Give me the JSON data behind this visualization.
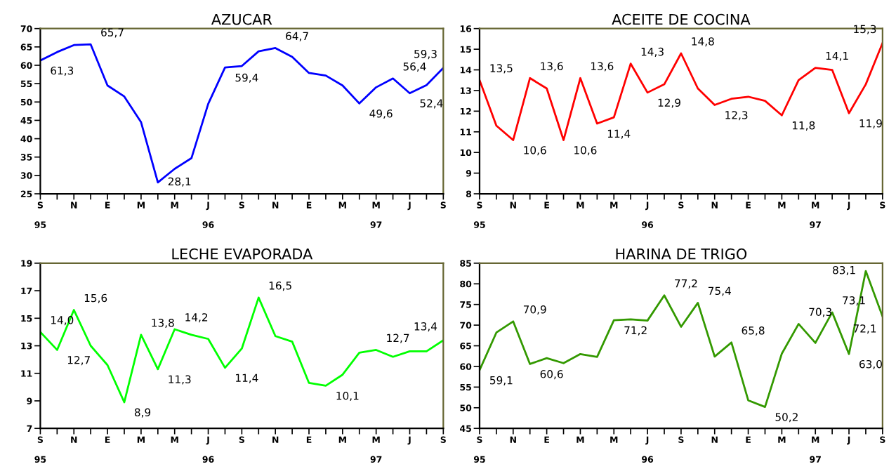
{
  "chart_data": [
    {
      "type": "line",
      "title": "AZUCAR",
      "categories": [
        "S\n\n95",
        null,
        "N",
        null,
        "E",
        null,
        "M",
        null,
        "M",
        null,
        "J\n\n96",
        null,
        "S",
        null,
        "N",
        null,
        "E",
        null,
        "M",
        null,
        "M\n\n97",
        null,
        "J",
        null,
        "S"
      ],
      "series": [
        {
          "color": "#0000ff",
          "values": [
            61.3,
            63.6,
            65.5,
            65.7,
            54.5,
            51.5,
            44.5,
            28.1,
            31.8,
            34.7,
            49.5,
            59.4,
            59.8,
            63.8,
            64.7,
            62.3,
            57.9,
            57.2,
            54.5,
            49.6,
            54.0,
            56.4,
            52.4,
            54.6,
            59.3
          ],
          "value_labels": [
            "61,3",
            null,
            null,
            "65,7",
            null,
            null,
            null,
            "28,1",
            null,
            null,
            null,
            "59,4",
            null,
            null,
            "64,7",
            null,
            null,
            null,
            null,
            "49,6",
            null,
            "56,4",
            "52,4",
            null,
            "59,3"
          ]
        }
      ],
      "ylim": [
        25,
        70
      ],
      "yticks": [
        25,
        30,
        35,
        40,
        45,
        50,
        55,
        60,
        65,
        70
      ],
      "grid": false,
      "legend": false,
      "marker": "none",
      "line_style": "solid"
    },
    {
      "type": "line",
      "title": "ACEITE DE COCINA",
      "categories": [
        "S\n\n95",
        null,
        "N",
        null,
        "E",
        null,
        "M",
        null,
        "M",
        null,
        "J\n\n96",
        null,
        "S",
        null,
        "N",
        null,
        "E",
        null,
        "M",
        null,
        "M\n\n97",
        null,
        "J",
        null,
        "S"
      ],
      "series": [
        {
          "color": "#ff0000",
          "values": [
            13.5,
            11.3,
            10.6,
            13.6,
            13.1,
            10.6,
            13.6,
            11.4,
            11.7,
            14.3,
            12.9,
            13.3,
            14.8,
            13.1,
            12.3,
            12.6,
            12.7,
            12.5,
            11.8,
            13.5,
            14.1,
            14.0,
            11.9,
            13.3,
            15.3
          ],
          "value_labels": [
            "13,5",
            null,
            "10,6",
            "13,6",
            null,
            "10,6",
            "13,6",
            "11,4",
            null,
            "14,3",
            "12,9",
            null,
            "14,8",
            null,
            "12,3",
            null,
            null,
            null,
            "11,8",
            null,
            "14,1",
            null,
            "11,9",
            null,
            "15,3"
          ]
        }
      ],
      "ylim": [
        8,
        16
      ],
      "yticks": [
        8,
        9,
        10,
        11,
        12,
        13,
        14,
        15,
        16
      ],
      "grid": false,
      "legend": false,
      "marker": "none",
      "line_style": "solid"
    },
    {
      "type": "line",
      "title": "LECHE EVAPORADA",
      "categories": [
        "S\n\n95",
        null,
        "N",
        null,
        "E",
        null,
        "M",
        null,
        "M",
        null,
        "J\n\n96",
        null,
        "S",
        null,
        "N",
        null,
        "E",
        null,
        "M",
        null,
        "M\n\n97",
        null,
        "J",
        null,
        "S"
      ],
      "series": [
        {
          "color": "#00ff00",
          "values": [
            14.0,
            12.7,
            15.6,
            13.0,
            11.6,
            8.9,
            13.8,
            11.3,
            14.2,
            13.8,
            13.5,
            11.4,
            12.8,
            16.5,
            13.7,
            13.3,
            10.3,
            10.1,
            10.9,
            12.5,
            12.7,
            12.2,
            12.6,
            12.6,
            13.4
          ],
          "value_labels": [
            "14,0",
            "12,7",
            "15,6",
            null,
            null,
            "8,9",
            "13,8",
            "11,3",
            "14,2",
            null,
            null,
            "11,4",
            null,
            "16,5",
            null,
            null,
            null,
            "10,1",
            null,
            null,
            "12,7",
            null,
            null,
            null,
            "13,4"
          ]
        }
      ],
      "ylim": [
        7,
        19
      ],
      "yticks": [
        7,
        9,
        11,
        13,
        15,
        17,
        19
      ],
      "grid": false,
      "legend": false,
      "marker": "none",
      "line_style": "solid"
    },
    {
      "type": "line",
      "title": "HARINA DE TRIGO",
      "categories": [
        "S\n\n95",
        null,
        "N",
        null,
        "E",
        null,
        "M",
        null,
        "M",
        null,
        "J\n\n96",
        null,
        "S",
        null,
        "N",
        null,
        "E",
        null,
        "M",
        null,
        "M\n\n97",
        null,
        "J",
        null,
        "S"
      ],
      "series": [
        {
          "color": "#339900",
          "values": [
            59.1,
            68.2,
            70.9,
            60.6,
            62.0,
            60.8,
            63.0,
            62.3,
            71.2,
            71.4,
            71.1,
            77.2,
            69.6,
            75.4,
            62.4,
            65.8,
            51.8,
            50.2,
            63.1,
            70.3,
            65.7,
            73.1,
            63.0,
            83.1,
            72.1
          ],
          "value_labels": [
            "59,1",
            null,
            "70,9",
            "60,6",
            null,
            null,
            null,
            null,
            "71,2",
            null,
            null,
            "77,2",
            null,
            "75,4",
            null,
            "65,8",
            null,
            "50,2",
            null,
            "70,3",
            null,
            "73,1",
            "63,0",
            "83,1",
            "72,1"
          ]
        }
      ],
      "ylim": [
        45,
        85
      ],
      "yticks": [
        45,
        50,
        55,
        60,
        65,
        70,
        75,
        80,
        85
      ],
      "grid": false,
      "legend": false,
      "marker": "none",
      "line_style": "solid"
    }
  ]
}
